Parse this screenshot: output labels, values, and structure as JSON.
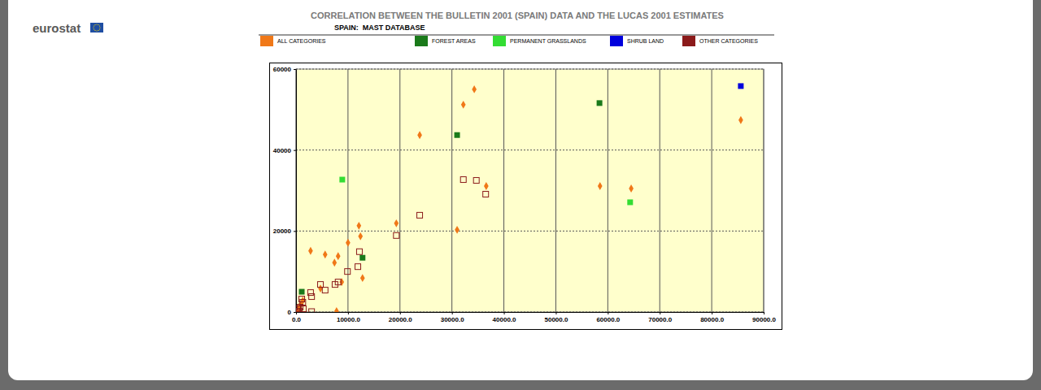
{
  "header": {
    "logo": "eurostat"
  },
  "chart_data": {
    "type": "scatter",
    "title": "CORRELATION BETWEEN THE BULLETIN 2001 (SPAIN) DATA AND THE LUCAS 2001 ESTIMATES",
    "subtitle": "SPAIN:  MAST DATABASE",
    "xlim": [
      0,
      90000
    ],
    "ylim": [
      0,
      60000
    ],
    "xticks": [
      {
        "value": 0,
        "label": "0.0"
      },
      {
        "value": 10000,
        "label": "10000.0"
      },
      {
        "value": 20000,
        "label": "20000.0"
      },
      {
        "value": 30000,
        "label": "30000.0"
      },
      {
        "value": 40000,
        "label": "40000.0"
      },
      {
        "value": 50000,
        "label": "50000.0"
      },
      {
        "value": 60000,
        "label": "60000.0"
      },
      {
        "value": 70000,
        "label": "70000.0"
      },
      {
        "value": 80000,
        "label": "80000.0"
      },
      {
        "value": 90000,
        "label": "90000.0"
      }
    ],
    "yticks": [
      0,
      20000,
      40000,
      60000
    ],
    "grid": true,
    "legend": "top",
    "series": [
      {
        "name": "ALL CATEGORIES",
        "color": "#f07818",
        "marker": "diamond",
        "x": [
          34300,
          32200,
          23800,
          85600,
          58500,
          64500,
          36600,
          31000,
          19300,
          12100,
          12400,
          12800,
          2800,
          5600,
          8100,
          7400,
          10000,
          8800,
          7800,
          4700,
          300,
          900,
          1300,
          600
        ],
        "values": [
          55000,
          51200,
          43700,
          47400,
          31100,
          30500,
          31100,
          20300,
          21900,
          21300,
          18700,
          8400,
          15100,
          14200,
          13800,
          12200,
          17100,
          7400,
          200,
          5800,
          400,
          1800,
          2800,
          1200
        ]
      },
      {
        "name": "FOREST AREAS",
        "color": "#1a7a1a",
        "marker": "square",
        "x": [
          58400,
          31000,
          12800,
          1100
        ],
        "values": [
          51600,
          43700,
          13400,
          5000
        ]
      },
      {
        "name": "PERMANENT GRASSLANDS",
        "color": "#33dd33",
        "marker": "square",
        "x": [
          8900,
          64300
        ],
        "values": [
          32700,
          27100
        ]
      },
      {
        "name": "SHRUB LAND",
        "color": "#0000dd",
        "marker": "square",
        "x": [
          85600
        ],
        "values": [
          55800
        ]
      },
      {
        "name": "OTHER CATEGORIES",
        "color": "#8b1a1a",
        "marker": "square_open",
        "x": [
          32200,
          34700,
          36500,
          23800,
          19300,
          12200,
          11900,
          9900,
          8100,
          7500,
          4700,
          5600,
          2800,
          3000,
          3000,
          200,
          500,
          800,
          1300,
          1100,
          600,
          1400
        ],
        "values": [
          32700,
          32500,
          29100,
          23900,
          18900,
          14900,
          11200,
          10000,
          7400,
          6800,
          6800,
          5400,
          4800,
          3800,
          100,
          200,
          800,
          1200,
          2400,
          3200,
          200,
          800
        ]
      }
    ]
  }
}
